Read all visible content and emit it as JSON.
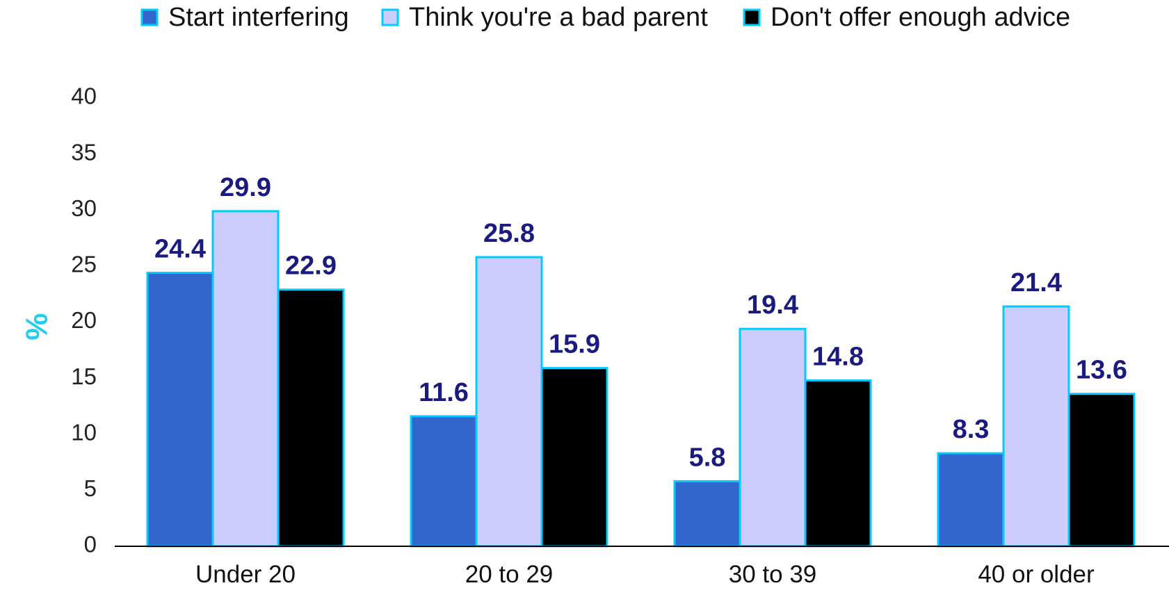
{
  "chart_data": {
    "type": "bar",
    "categories": [
      "Under 20",
      "20 to 29",
      "30 to 39",
      "40 or older"
    ],
    "series": [
      {
        "name": "Start interfering",
        "values": [
          24.4,
          11.6,
          5.8,
          8.3
        ],
        "color": "#3366cc"
      },
      {
        "name": "Think you're a bad parent",
        "values": [
          29.9,
          25.8,
          19.4,
          21.4
        ],
        "color": "#ccccff"
      },
      {
        "name": "Don't offer enough advice",
        "values": [
          22.9,
          15.9,
          14.8,
          13.6
        ],
        "color": "#000000"
      }
    ],
    "ylabel": "%",
    "ylim": [
      0,
      40
    ],
    "yticks": [
      "0",
      "5",
      "10",
      "15",
      "20",
      "25",
      "30",
      "35",
      "40"
    ],
    "grid": false,
    "legend_position": "top",
    "colors": {
      "bar_outline": "#00ccff",
      "data_label": "#1a1a80",
      "ylabel": "#22ccee",
      "axis": "#000000"
    }
  }
}
